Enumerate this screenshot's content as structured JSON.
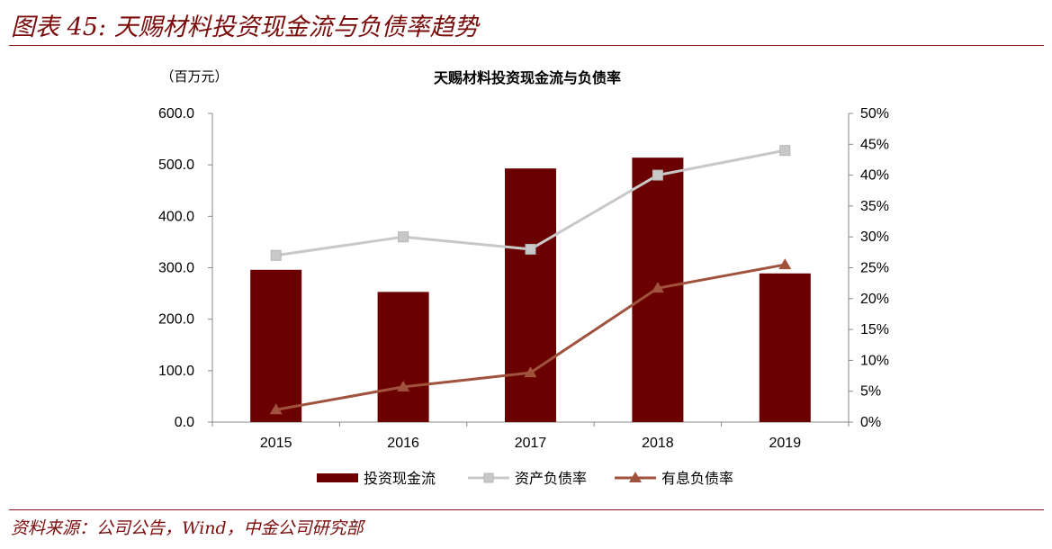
{
  "figure": {
    "title": "图表 45: 天赐材料投资现金流与负债率趋势",
    "source": "资料来源：公司公告，Wind，中金公司研究部"
  },
  "chart_data": {
    "type": "bar",
    "title": "天赐材料投资现金流与负债率",
    "unit_label": "（百万元）",
    "categories": [
      "2015",
      "2016",
      "2017",
      "2018",
      "2019"
    ],
    "y_left": {
      "min": 0,
      "max": 600,
      "step": 100,
      "ticks": [
        "0.0",
        "100.0",
        "200.0",
        "300.0",
        "400.0",
        "500.0",
        "600.0"
      ]
    },
    "y_right": {
      "min": 0,
      "max": 0.5,
      "step": 0.05,
      "ticks": [
        "0%",
        "5%",
        "10%",
        "15%",
        "20%",
        "25%",
        "30%",
        "35%",
        "40%",
        "45%",
        "50%"
      ]
    },
    "grid": false,
    "legend_position": "bottom",
    "series": [
      {
        "name": "投资现金流",
        "kind": "bar",
        "axis": "left",
        "color": "#6b0000",
        "values": [
          296,
          253,
          493,
          514,
          289
        ]
      },
      {
        "name": "资产负债率",
        "kind": "line",
        "axis": "right",
        "color": "#c8c8c8",
        "marker": "square",
        "values": [
          0.27,
          0.3,
          0.28,
          0.4,
          0.44
        ]
      },
      {
        "name": "有息负债率",
        "kind": "line",
        "axis": "right",
        "color": "#a0523d",
        "marker": "triangle",
        "values": [
          0.02,
          0.057,
          0.08,
          0.217,
          0.255
        ]
      }
    ]
  }
}
